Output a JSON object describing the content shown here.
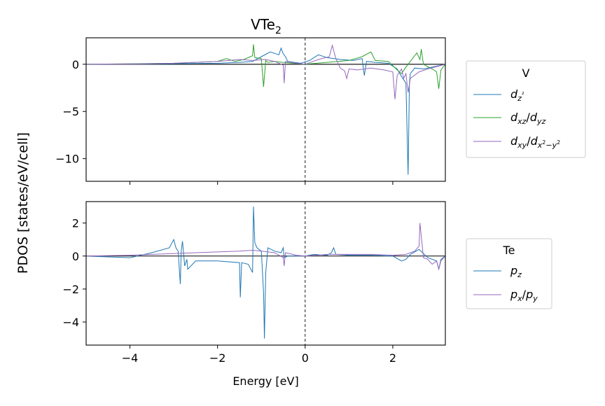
{
  "chart_data": [
    {
      "type": "line",
      "title": "VTe",
      "title_sub": "2",
      "ylabel": "PDOS [states/eV/cell]",
      "xlim": [
        -5,
        3.2
      ],
      "ylim": [
        -12.4,
        2.8
      ],
      "xticks": [
        -4,
        -2,
        0,
        2
      ],
      "yticks": [
        0,
        -5,
        -10
      ],
      "ytick_labels": [
        "0",
        "−5",
        "−10"
      ],
      "fermi_level": 0,
      "legend": {
        "title": "V",
        "position": "right",
        "entries": [
          "d_{z²}",
          "d_{xz}/d_{yz}",
          "d_{xy}/d_{x²−y²}"
        ]
      },
      "series": [
        {
          "name": "dz2",
          "color": "#1f77b4",
          "x": [
            -5,
            -3.0,
            -2.0,
            -1.5,
            -1.2,
            -1.0,
            -0.8,
            -0.6,
            -0.55,
            -0.5,
            -0.45,
            -0.4,
            -0.1,
            0.1,
            0.3,
            0.5,
            0.8,
            1.1,
            1.3,
            1.35,
            1.4,
            1.6,
            1.9,
            2.1,
            2.2,
            2.3,
            2.35,
            2.38,
            2.4,
            2.5,
            2.7,
            3.0,
            3.2
          ],
          "y": [
            0,
            0.05,
            0.1,
            0.2,
            0.3,
            0.8,
            1.3,
            1.0,
            1.7,
            1.1,
            0.8,
            0.3,
            0.1,
            0.4,
            1.0,
            0.7,
            0.5,
            0.4,
            0.6,
            -1.2,
            0.3,
            0.2,
            0.1,
            -0.5,
            -1.3,
            -2.0,
            -11.7,
            -2.0,
            -1.0,
            -0.4,
            -0.5,
            -0.2,
            0
          ]
        },
        {
          "name": "dxz_dyz",
          "color": "#2ca02c",
          "x": [
            -5,
            -4.0,
            -3.0,
            -2.0,
            -1.8,
            -1.6,
            -1.4,
            -1.2,
            -1.18,
            -1.15,
            -1.0,
            -0.95,
            -0.9,
            -0.85,
            -0.7,
            -0.5,
            0,
            0.5,
            1.0,
            1.3,
            1.5,
            1.6,
            1.9,
            2.1,
            2.2,
            2.3,
            2.45,
            2.55,
            2.62,
            2.65,
            2.7,
            2.9,
            3.0,
            3.05,
            3.1,
            3.2
          ],
          "y": [
            0,
            0.05,
            0.1,
            0.3,
            0.6,
            0.3,
            0.5,
            0.9,
            2.1,
            0.7,
            0.6,
            -2.4,
            0.4,
            0.2,
            0.3,
            0.2,
            0,
            0.2,
            0.4,
            0.8,
            1.3,
            0.4,
            0.3,
            -0.6,
            -1.0,
            -0.3,
            0.6,
            1.2,
            0.5,
            1.6,
            0.0,
            -0.5,
            -0.8,
            -2.6,
            -0.6,
            0
          ]
        },
        {
          "name": "dxy_dx2y2",
          "color": "#9467bd",
          "x": [
            -5,
            -3.7,
            -3.0,
            -2.5,
            -2.0,
            -1.5,
            -1.2,
            -0.9,
            -0.7,
            -0.5,
            -0.48,
            -0.45,
            -0.2,
            0,
            0.3,
            0.55,
            0.62,
            0.7,
            0.8,
            0.9,
            0.95,
            1.0,
            1.2,
            1.5,
            1.8,
            2.0,
            2.05,
            2.1,
            2.2,
            2.25,
            2.3,
            2.35,
            2.4,
            2.6,
            2.8,
            3.2
          ],
          "y": [
            0,
            0.05,
            0.1,
            0.2,
            0.3,
            0.5,
            0.4,
            0.5,
            0.3,
            -0.1,
            -2.0,
            0.3,
            0.1,
            0,
            0.5,
            0.8,
            2.0,
            0.6,
            -0.4,
            -0.7,
            -1.5,
            -0.5,
            -0.6,
            -0.4,
            -0.6,
            -0.8,
            -3.7,
            -1.2,
            -0.5,
            -1.5,
            -1.0,
            -3.0,
            -1.5,
            -0.8,
            -0.5,
            0
          ]
        }
      ]
    },
    {
      "type": "line",
      "xlabel": "Energy [eV]",
      "xlim": [
        -5,
        3.2
      ],
      "ylim": [
        -5.4,
        3.3
      ],
      "xticks": [
        -4,
        -2,
        0,
        2
      ],
      "xtick_labels": [
        "−4",
        "−2",
        "0",
        "2"
      ],
      "yticks": [
        2,
        0,
        -2,
        -4
      ],
      "ytick_labels": [
        "2",
        "0",
        "−2",
        "−4"
      ],
      "fermi_level": 0,
      "legend": {
        "title": "Te",
        "position": "right",
        "entries": [
          "p_z",
          "p_x/p_y"
        ]
      },
      "series": [
        {
          "name": "pz",
          "color": "#1f77b4",
          "x": [
            -5,
            -4.0,
            -3.5,
            -3.1,
            -3.0,
            -2.95,
            -2.9,
            -2.85,
            -2.83,
            -2.8,
            -2.75,
            -2.7,
            -2.68,
            -2.5,
            -2.0,
            -1.5,
            -1.48,
            -1.45,
            -1.3,
            -1.2,
            -1.18,
            -1.15,
            -1.1,
            -1.0,
            -0.95,
            -0.93,
            -0.9,
            -0.85,
            -0.7,
            -0.55,
            -0.5,
            -0.48,
            -0.4,
            0,
            0.2,
            0.5,
            0.6,
            0.65,
            0.7,
            1.0,
            1.5,
            2.0,
            2.2,
            2.3,
            2.4,
            2.6,
            2.8,
            3.0,
            3.05,
            3.1,
            3.2
          ],
          "y": [
            0,
            -0.1,
            0.2,
            0.5,
            1.0,
            0.5,
            0.3,
            -1.7,
            0.3,
            0.9,
            -0.6,
            -0.2,
            -0.8,
            -0.3,
            -0.3,
            -0.4,
            -2.5,
            -0.4,
            -0.5,
            -1.0,
            3.0,
            0.8,
            0.5,
            0.3,
            -2.2,
            -5.0,
            -1.0,
            0.5,
            0.3,
            0.2,
            0.5,
            -0.1,
            0.0,
            0.0,
            0.1,
            0.05,
            0.2,
            0.5,
            0.1,
            0.05,
            0.05,
            0.0,
            -0.3,
            -0.2,
            0.1,
            0.4,
            -0.1,
            -0.3,
            -0.8,
            -0.2,
            0
          ]
        },
        {
          "name": "px_py",
          "color": "#9467bd",
          "x": [
            -5,
            -4.0,
            -3.5,
            -3.0,
            -2.5,
            -2.0,
            -1.5,
            -1.2,
            -1.0,
            -0.7,
            -0.5,
            -0.48,
            -0.45,
            -0.2,
            0,
            0.5,
            1.0,
            1.5,
            2.0,
            2.3,
            2.5,
            2.6,
            2.62,
            2.65,
            2.68,
            2.7,
            2.8,
            2.9,
            3.0,
            3.05,
            3.1,
            3.2
          ],
          "y": [
            0,
            0.05,
            0.1,
            0.15,
            0.2,
            0.25,
            0.3,
            0.35,
            0.3,
            0.2,
            -0.1,
            -0.6,
            0.2,
            0.05,
            0,
            0.1,
            0.1,
            0.1,
            0.05,
            0.1,
            0.3,
            0.6,
            2.0,
            1.2,
            0.4,
            -0.1,
            -0.2,
            -0.5,
            -0.3,
            -0.8,
            -0.3,
            0
          ]
        }
      ]
    }
  ]
}
